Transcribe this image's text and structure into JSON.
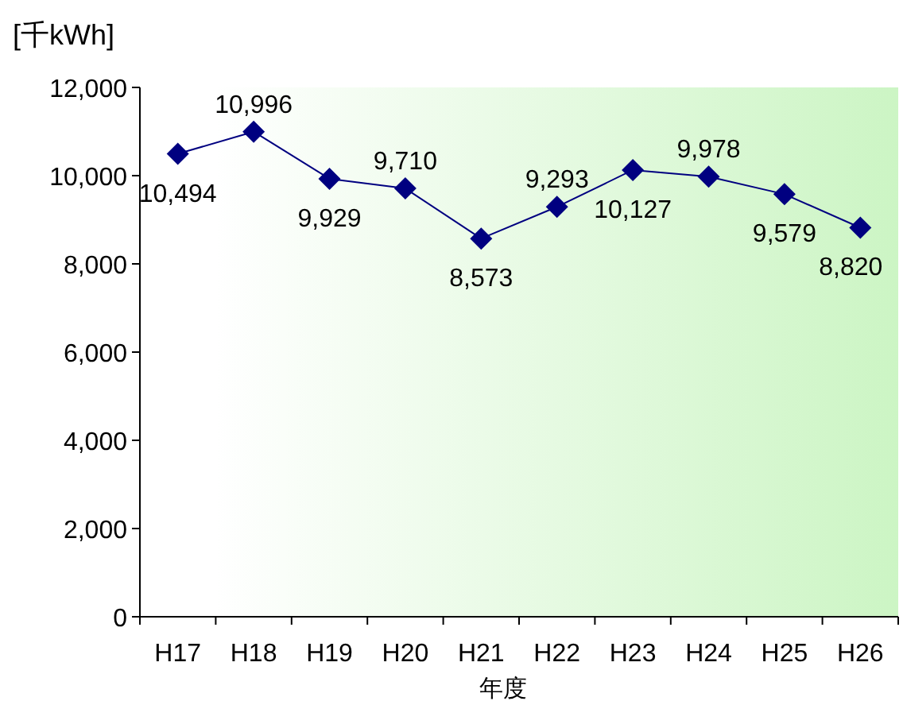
{
  "chart_data": {
    "type": "line",
    "ylabel": "[千kWh]",
    "xlabel": "年度",
    "categories": [
      "H17",
      "H18",
      "H19",
      "H20",
      "H21",
      "H22",
      "H23",
      "H24",
      "H25",
      "H26"
    ],
    "series": [
      {
        "color": "#000080",
        "values": [
          10494,
          10996,
          9929,
          9710,
          8573,
          9293,
          10127,
          9978,
          9579,
          8820
        ],
        "value_labels": [
          "10,494",
          "10,996",
          "9,929",
          "9,710",
          "8,573",
          "9,293",
          "10,127",
          "9,978",
          "9,579",
          "8,820"
        ]
      }
    ],
    "ylim": [
      0,
      12000
    ],
    "yticks": [
      0,
      {
        "value": 2000,
        "label": "2,000"
      },
      {
        "value": 4000,
        "label": "4,000"
      },
      {
        "value": 6000,
        "label": "6,000"
      },
      {
        "value": 8000,
        "label": "8,000"
      },
      {
        "value": 10000,
        "label": "10,000"
      },
      {
        "value": 12000,
        "label": "12,000"
      }
    ],
    "marker": "diamond",
    "grid": false
  }
}
